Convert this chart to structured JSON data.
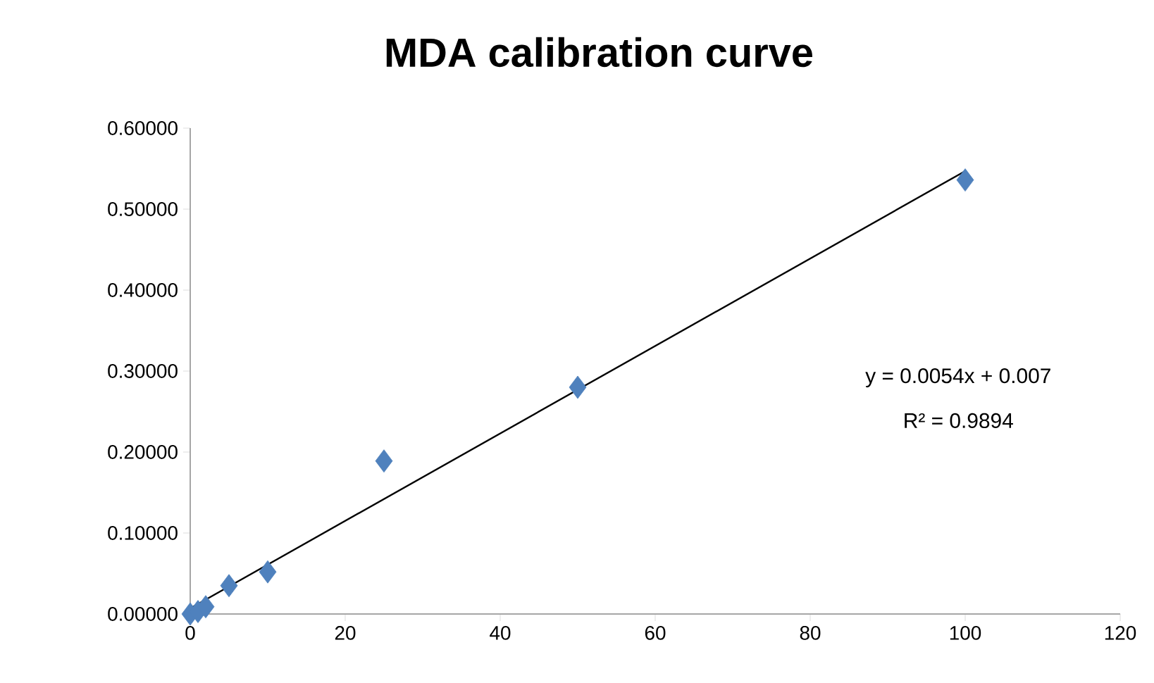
{
  "chart_data": {
    "type": "scatter",
    "title": "MDA calibration curve",
    "xlim": [
      0,
      120
    ],
    "ylim": [
      0,
      0.6
    ],
    "xticks": [
      0,
      20,
      40,
      60,
      80,
      100,
      120
    ],
    "yticks": [
      {
        "value": 0,
        "label": "0.00000"
      },
      {
        "value": 0.1,
        "label": "0.10000"
      },
      {
        "value": 0.2,
        "label": "0.20000"
      },
      {
        "value": 0.3,
        "label": "0.30000"
      },
      {
        "value": 0.4,
        "label": "0.40000"
      },
      {
        "value": 0.5,
        "label": "0.50000"
      },
      {
        "value": 0.6,
        "label": "0.60000"
      }
    ],
    "marker": "diamond",
    "grid": false,
    "series": [
      {
        "color": "#4f81bd",
        "x": [
          0,
          1,
          2,
          5,
          10,
          25,
          50,
          100
        ],
        "values": [
          0.0,
          0.003,
          0.009,
          0.035,
          0.052,
          0.189,
          0.28,
          0.536
        ]
      },
      {
        "type": "line",
        "marker": "none",
        "color": "#000000",
        "x": [
          0,
          100
        ],
        "values": [
          0.007,
          0.547
        ]
      }
    ],
    "annotations": [
      "y = 0.0054x + 0.007",
      "R² = 0.9894"
    ]
  }
}
